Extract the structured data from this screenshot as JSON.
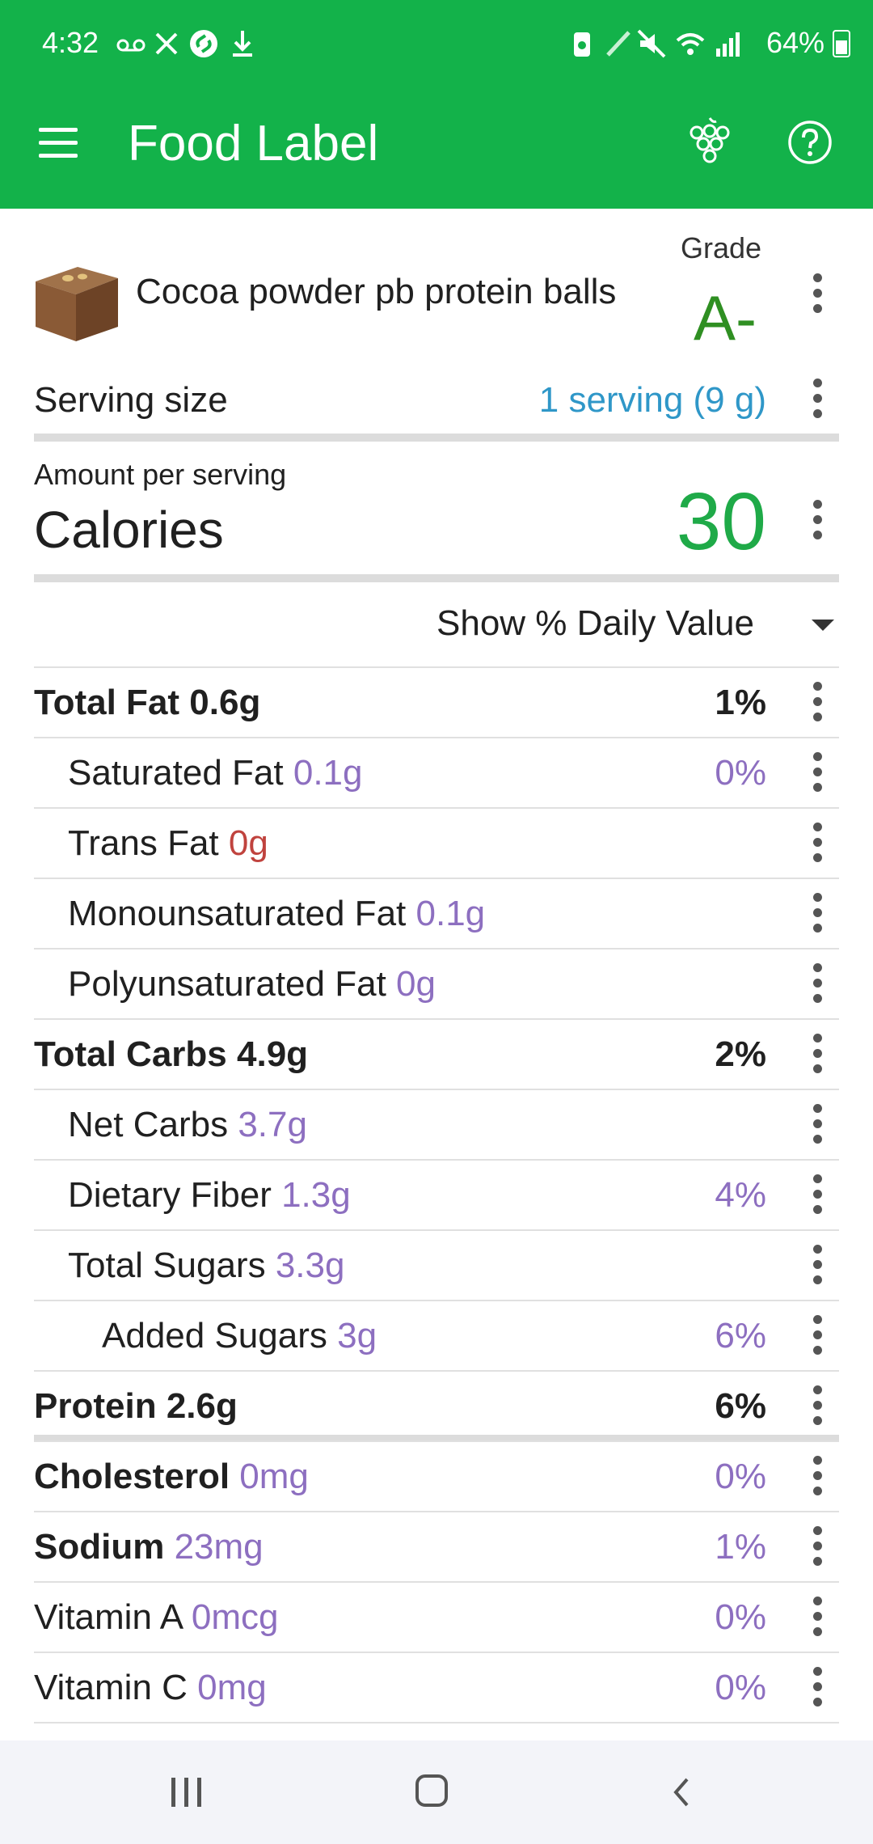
{
  "status": {
    "time": "4:32",
    "battery_pct": "64%",
    "left_icons": [
      "voicemail-icon",
      "tools-icon",
      "shazam-icon",
      "download-icon"
    ],
    "right_icons": [
      "battery-saver-icon",
      "pen-icon",
      "mute-icon",
      "wifi-icon",
      "signal-icon"
    ]
  },
  "toolbar": {
    "title": "Food Label",
    "icons": [
      "menu-icon",
      "grapes-icon",
      "help-icon"
    ]
  },
  "colors": {
    "appbar": "#13b24a",
    "grade": "#2f8f22",
    "calories": "#1faa48",
    "serving_link": "#2f97c8",
    "nutrient_amount": "#8d6fc0",
    "trans_fat_amount": "#c0433e"
  },
  "food": {
    "name": "Cocoa powder pb protein balls",
    "grade_label": "Grade",
    "grade": "A-"
  },
  "serving": {
    "label": "Serving size",
    "value": "1 serving (9 g)"
  },
  "calories": {
    "amount_label": "Amount per serving",
    "label": "Calories",
    "value": "30"
  },
  "daily_value_toggle": "Show % Daily Value",
  "nutrients": [
    {
      "name": "Total Fat",
      "amount": "0.6g",
      "pct": "1%",
      "level": 0,
      "bold": true
    },
    {
      "name": "Saturated Fat",
      "amount": "0.1g",
      "pct": "0%",
      "level": 1
    },
    {
      "name": "Trans Fat",
      "amount": "0g",
      "pct": "",
      "level": 1,
      "red": true
    },
    {
      "name": "Monounsaturated Fat",
      "amount": "0.1g",
      "pct": "",
      "level": 1
    },
    {
      "name": "Polyunsaturated Fat",
      "amount": "0g",
      "pct": "",
      "level": 1
    },
    {
      "name": "Total Carbs",
      "amount": "4.9g",
      "pct": "2%",
      "level": 0,
      "bold": true
    },
    {
      "name": "Net Carbs",
      "amount": "3.7g",
      "pct": "",
      "level": 1
    },
    {
      "name": "Dietary Fiber",
      "amount": "1.3g",
      "pct": "4%",
      "level": 1
    },
    {
      "name": "Total Sugars",
      "amount": "3.3g",
      "pct": "",
      "level": 1
    },
    {
      "name": "Added Sugars",
      "amount": "3g",
      "pct": "6%",
      "level": 2
    },
    {
      "name": "Protein",
      "amount": "2.6g",
      "pct": "6%",
      "level": 0,
      "bold": true,
      "thick_after": true
    },
    {
      "name": "Cholesterol",
      "amount": "0mg",
      "pct": "0%",
      "level": 0,
      "label_bold": true
    },
    {
      "name": "Sodium",
      "amount": "23mg",
      "pct": "1%",
      "level": 0,
      "label_bold": true
    },
    {
      "name": "Vitamin A",
      "amount": "0mcg",
      "pct": "0%",
      "level": 0
    },
    {
      "name": "Vitamin C",
      "amount": "0mg",
      "pct": "0%",
      "level": 0
    }
  ],
  "navbar": {
    "icons": [
      "recents-icon",
      "home-icon",
      "back-icon"
    ]
  }
}
